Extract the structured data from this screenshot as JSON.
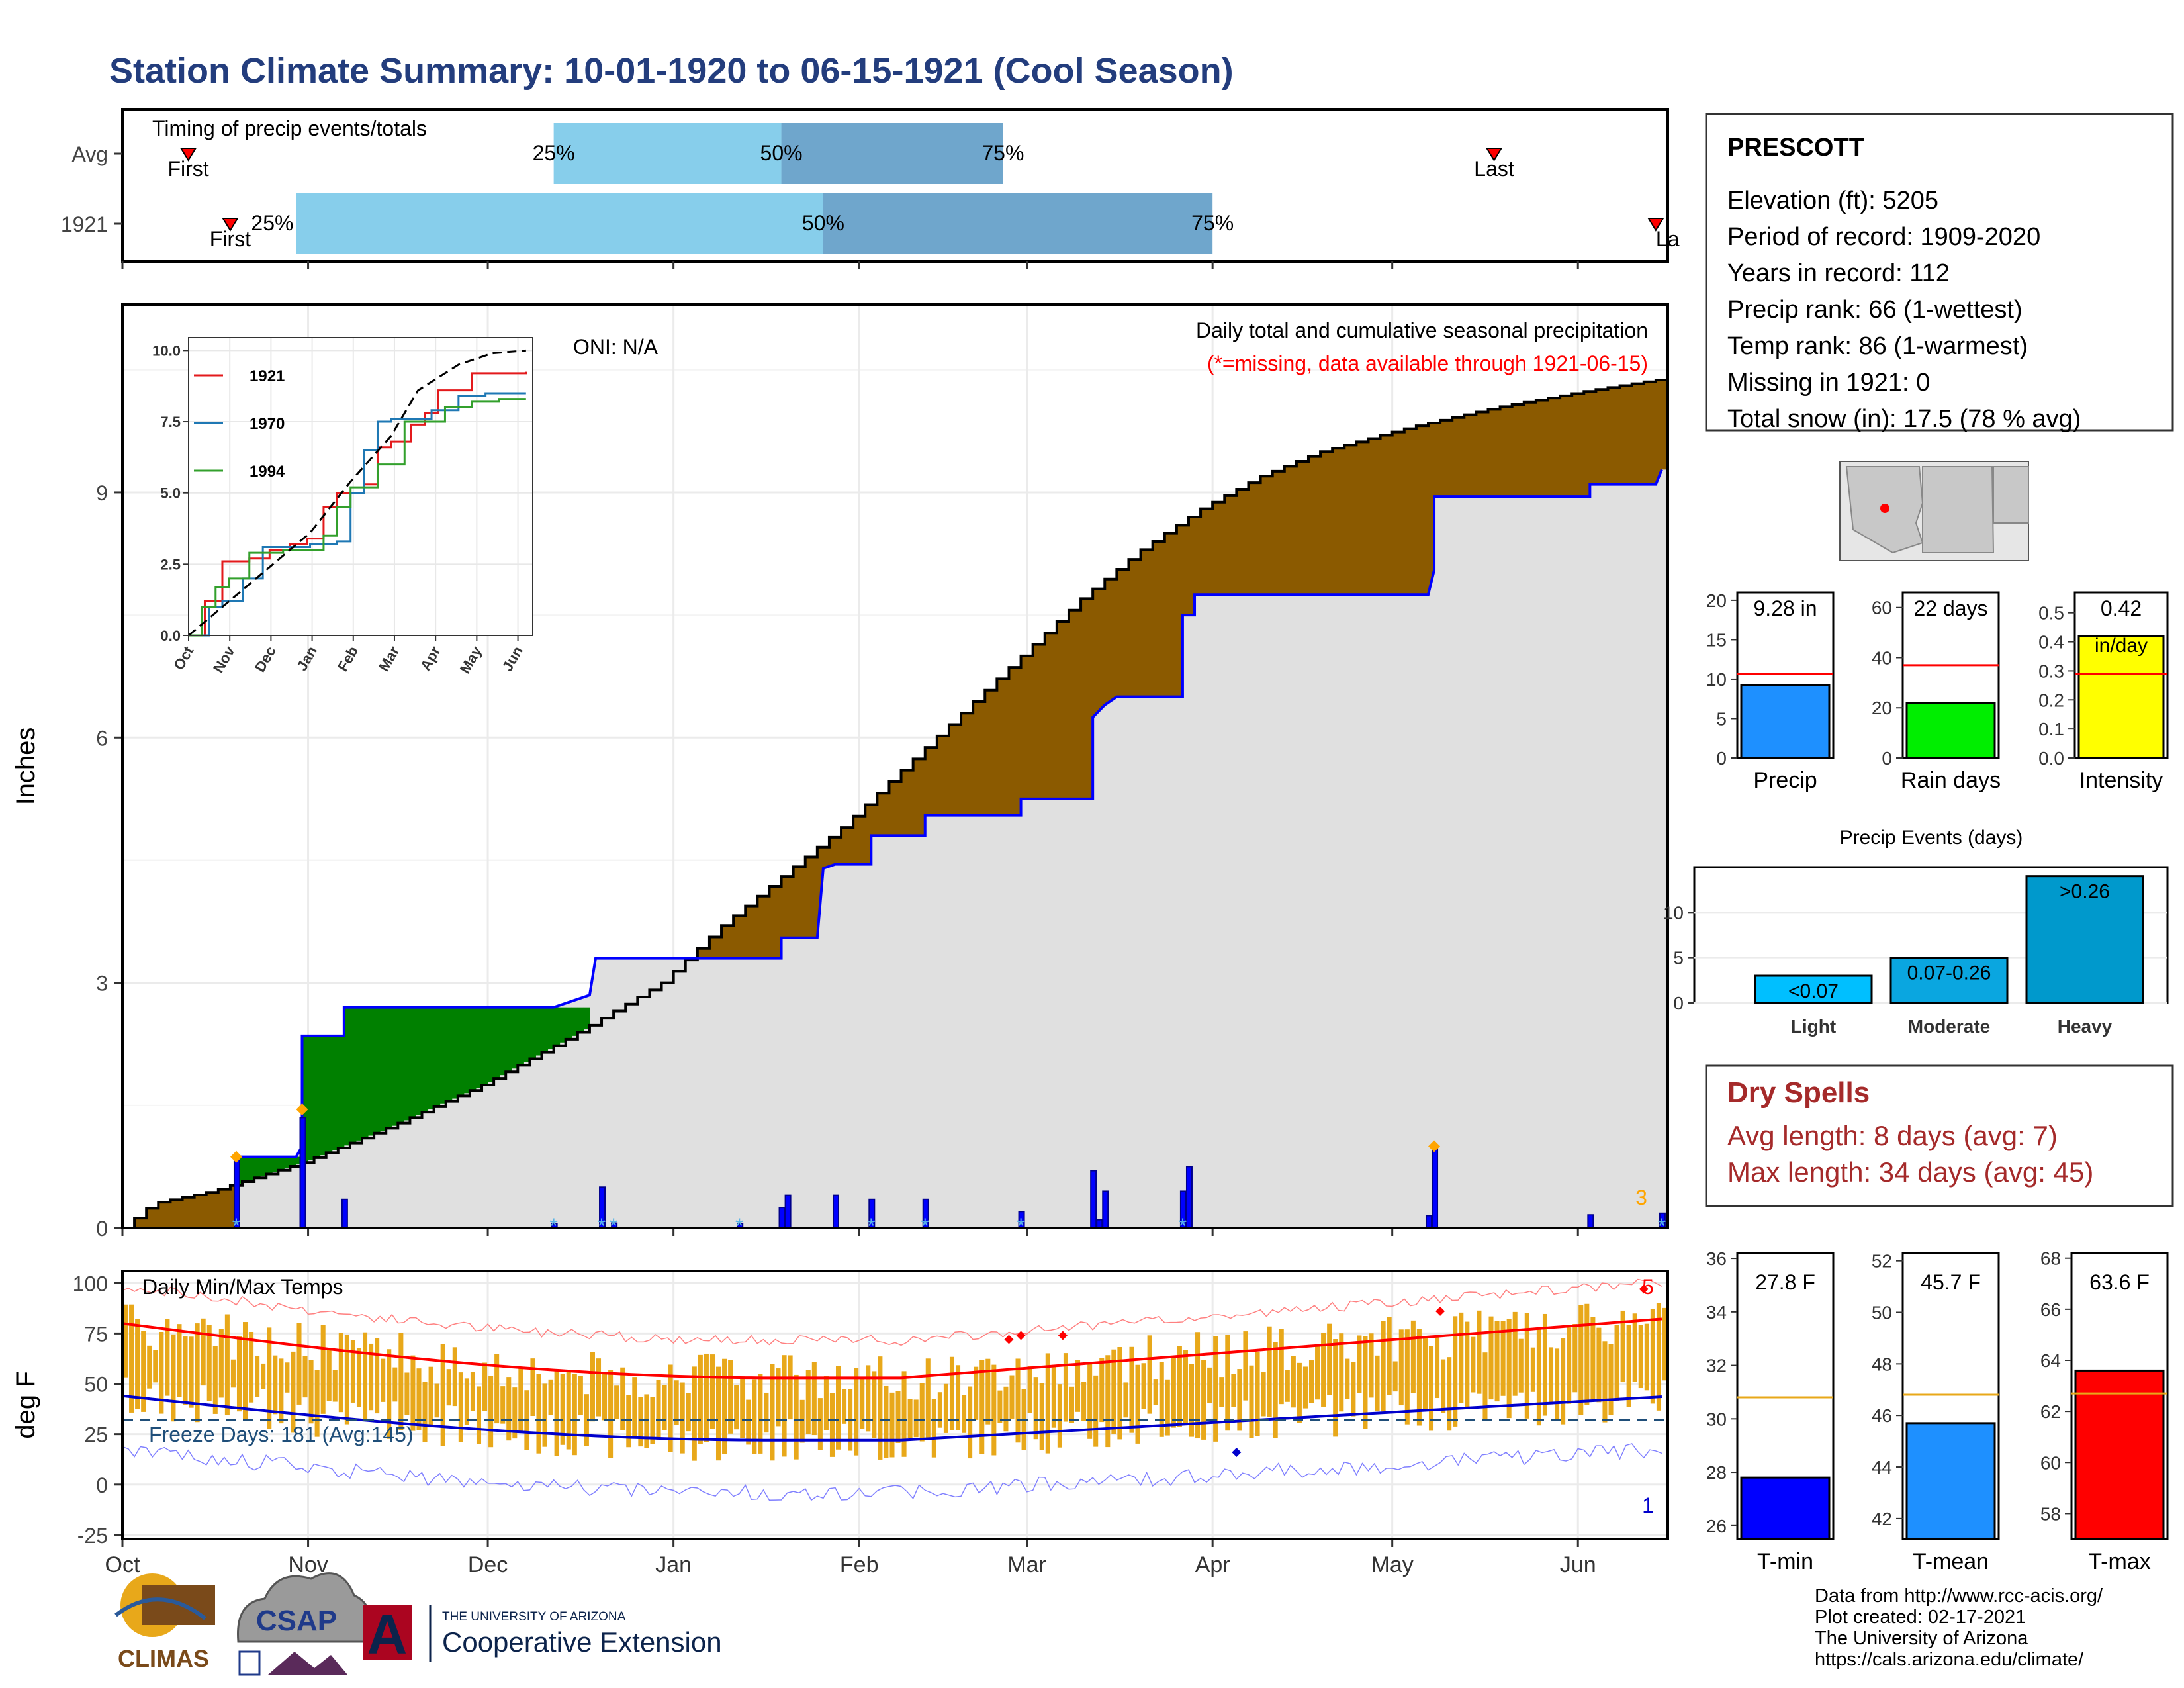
{
  "title": "Station Climate Summary: 10-01-1920 to 06-15-1921 (Cool Season)",
  "colors": {
    "title": "#233d7d",
    "light_blue": "#87ceeb",
    "mid_blue": "#6fa6cc",
    "brown": "#8b5a00",
    "green": "#008000",
    "gray_fill": "#e0e0e0",
    "blue_line": "#0000ff",
    "orange": "#e8a81a",
    "red": "#ff0000",
    "dry_spell": "#a52a2a"
  },
  "timing_panel": {
    "label": "Timing of precip events/totals",
    "rows": [
      {
        "name": "Avg",
        "first_label": "First",
        "last_label": "Last",
        "p25": "25%",
        "p50": "50%",
        "p75": "75%",
        "first_day": 11,
        "last_day": 229,
        "q25_day": 72,
        "q50_day": 110,
        "q75_day": 147
      },
      {
        "name": "1921",
        "first_label": "First",
        "last_label": "La",
        "p25": "25%",
        "p50": "50%",
        "p75": "75%",
        "first_day": 18,
        "last_day": 256,
        "q25_day": 29,
        "q50_day": 117,
        "q75_day": 182
      }
    ]
  },
  "main_panel": {
    "ylabel": "Inches",
    "yticks": [
      0,
      3,
      6,
      9
    ],
    "ymax": 11.3,
    "oni": "ONI: N/A",
    "header": "Daily total and cumulative seasonal precipitation",
    "missing_note": "(*=missing, data available through 1921-06-15)",
    "corner_count": "3",
    "days_total": 258,
    "avg_cumulative": [
      [
        0,
        0
      ],
      [
        5,
        0.3
      ],
      [
        15,
        0.45
      ],
      [
        30,
        0.8
      ],
      [
        45,
        1.25
      ],
      [
        60,
        1.75
      ],
      [
        75,
        2.35
      ],
      [
        90,
        3.0
      ],
      [
        100,
        3.7
      ],
      [
        110,
        4.3
      ],
      [
        120,
        4.9
      ],
      [
        130,
        5.6
      ],
      [
        140,
        6.3
      ],
      [
        150,
        7.0
      ],
      [
        160,
        7.7
      ],
      [
        170,
        8.3
      ],
      [
        180,
        8.8
      ],
      [
        190,
        9.2
      ],
      [
        200,
        9.5
      ],
      [
        215,
        9.8
      ],
      [
        230,
        10.05
      ],
      [
        245,
        10.25
      ],
      [
        258,
        10.4
      ]
    ],
    "season_cumulative": [
      [
        0,
        0
      ],
      [
        19,
        0
      ],
      [
        19,
        0.87
      ],
      [
        29,
        0.87
      ],
      [
        30,
        1.0
      ],
      [
        30,
        2.35
      ],
      [
        37,
        2.35
      ],
      [
        37,
        2.7
      ],
      [
        72,
        2.7
      ],
      [
        78,
        2.85
      ],
      [
        79,
        3.3
      ],
      [
        110,
        3.3
      ],
      [
        110,
        3.55
      ],
      [
        116,
        3.55
      ],
      [
        117,
        4.4
      ],
      [
        119,
        4.45
      ],
      [
        125,
        4.45
      ],
      [
        125,
        4.8
      ],
      [
        134,
        4.8
      ],
      [
        134,
        5.05
      ],
      [
        150,
        5.05
      ],
      [
        150,
        5.25
      ],
      [
        162,
        5.25
      ],
      [
        162,
        6.25
      ],
      [
        164,
        6.4
      ],
      [
        166,
        6.5
      ],
      [
        177,
        6.5
      ],
      [
        177,
        7.5
      ],
      [
        179,
        7.5
      ],
      [
        179,
        7.75
      ],
      [
        218,
        7.75
      ],
      [
        219,
        8.05
      ],
      [
        219,
        8.95
      ],
      [
        245,
        8.95
      ],
      [
        245,
        9.1
      ],
      [
        256,
        9.1
      ],
      [
        257,
        9.28
      ]
    ],
    "daily_bars": [
      [
        19,
        0.87
      ],
      [
        30,
        1.35
      ],
      [
        37,
        0.35
      ],
      [
        72,
        0.05
      ],
      [
        80,
        0.5
      ],
      [
        82,
        0.06
      ],
      [
        103,
        0.05
      ],
      [
        110,
        0.25
      ],
      [
        111,
        0.4
      ],
      [
        119,
        0.4
      ],
      [
        125,
        0.35
      ],
      [
        134,
        0.35
      ],
      [
        150,
        0.2
      ],
      [
        162,
        0.7
      ],
      [
        163,
        0.1
      ],
      [
        164,
        0.45
      ],
      [
        177,
        0.45
      ],
      [
        178,
        0.75
      ],
      [
        218,
        0.15
      ],
      [
        219,
        0.98
      ],
      [
        245,
        0.16
      ],
      [
        257,
        0.18
      ]
    ],
    "snow_days": [
      19,
      72,
      80,
      82,
      103,
      125,
      134,
      150,
      177,
      257
    ]
  },
  "inset": {
    "years": [
      "1921",
      "1970",
      "1994"
    ],
    "colors": [
      "#e31a1c",
      "#1f78b4",
      "#33a02c"
    ],
    "yticks": [
      "0.0",
      "2.5",
      "5.0",
      "7.5",
      "10.0"
    ],
    "ymax": 10.0,
    "months": [
      "Oct",
      "Nov",
      "Dec",
      "Jan",
      "Feb",
      "Mar",
      "Apr",
      "May",
      "Jun"
    ],
    "avg": [
      [
        0,
        0
      ],
      [
        30,
        1.2
      ],
      [
        60,
        2.4
      ],
      [
        90,
        3.6
      ],
      [
        120,
        5.4
      ],
      [
        150,
        7.0
      ],
      [
        170,
        8.6
      ],
      [
        200,
        9.5
      ],
      [
        225,
        9.9
      ],
      [
        250,
        10.0
      ]
    ],
    "series": [
      [
        [
          0,
          0
        ],
        [
          12,
          1.2
        ],
        [
          25,
          2.6
        ],
        [
          45,
          2.7
        ],
        [
          60,
          3.0
        ],
        [
          75,
          3.2
        ],
        [
          88,
          3.4
        ],
        [
          100,
          4.5
        ],
        [
          110,
          5.0
        ],
        [
          130,
          5.3
        ],
        [
          140,
          6.6
        ],
        [
          150,
          6.8
        ],
        [
          165,
          7.4
        ],
        [
          175,
          7.8
        ],
        [
          185,
          8.6
        ],
        [
          210,
          9.2
        ],
        [
          240,
          9.2
        ],
        [
          250,
          9.25
        ]
      ],
      [
        [
          0,
          0
        ],
        [
          15,
          1.0
        ],
        [
          25,
          1.2
        ],
        [
          40,
          2.0
        ],
        [
          55,
          3.1
        ],
        [
          75,
          3.1
        ],
        [
          90,
          3.2
        ],
        [
          110,
          3.3
        ],
        [
          120,
          5.0
        ],
        [
          130,
          6.5
        ],
        [
          140,
          7.5
        ],
        [
          150,
          7.6
        ],
        [
          160,
          7.6
        ],
        [
          180,
          7.9
        ],
        [
          200,
          8.4
        ],
        [
          220,
          8.5
        ],
        [
          250,
          8.5
        ]
      ],
      [
        [
          0,
          0
        ],
        [
          10,
          1.0
        ],
        [
          20,
          1.7
        ],
        [
          30,
          2.0
        ],
        [
          45,
          2.9
        ],
        [
          70,
          3.0
        ],
        [
          90,
          3.0
        ],
        [
          100,
          3.5
        ],
        [
          110,
          4.5
        ],
        [
          120,
          5.2
        ],
        [
          140,
          6.0
        ],
        [
          160,
          7.5
        ],
        [
          190,
          8.0
        ],
        [
          210,
          8.2
        ],
        [
          230,
          8.3
        ],
        [
          250,
          8.3
        ]
      ]
    ]
  },
  "temp_panel": {
    "ylabel": "deg F",
    "label": "Daily Min/Max Temps",
    "freeze": "Freeze Days: 181 (Avg:145)",
    "yticks": [
      -25,
      0,
      25,
      50,
      75,
      100
    ],
    "ymin": -27,
    "ymax": 106,
    "freeze_line": 32,
    "max_count": "5",
    "min_count": "1",
    "months": [
      "Oct",
      "Nov",
      "Dec",
      "Jan",
      "Feb",
      "Mar",
      "Apr",
      "May",
      "Jun"
    ],
    "month_days": [
      0,
      31,
      61,
      92,
      123,
      151,
      182,
      212,
      243
    ]
  },
  "station": {
    "name": "PRESCOTT",
    "lines": [
      "Elevation (ft): 5205",
      "Period of record: 1909-2020",
      "Years in record: 112",
      "Precip rank: 66 (1-wettest)",
      "Temp rank: 86 (1-warmest)",
      "Missing in 1921: 0",
      "Total snow (in): 17.5 (78 % avg)"
    ]
  },
  "mini_bars": [
    {
      "label": "Precip",
      "value": 9.28,
      "value_label": "9.28 in",
      "avg": 10.7,
      "ymax": 21,
      "yticks": [
        "0",
        "5",
        "10",
        "15",
        "20"
      ],
      "tick_vals": [
        0,
        5,
        10,
        15,
        20
      ],
      "color": "#1e90ff"
    },
    {
      "label": "Rain days",
      "value": 22,
      "value_label": "22 days",
      "avg": 37,
      "ymax": 66,
      "yticks": [
        "0",
        "20",
        "40",
        "60"
      ],
      "tick_vals": [
        0,
        20,
        40,
        60
      ],
      "color": "#00ee00"
    },
    {
      "label": "Intensity",
      "value": 0.42,
      "value_label": "0.42",
      "unit": "in/day",
      "avg": 0.29,
      "ymax": 0.57,
      "yticks": [
        "0.0",
        "0.1",
        "0.2",
        "0.3",
        "0.4",
        "0.5"
      ],
      "tick_vals": [
        0,
        0.1,
        0.2,
        0.3,
        0.4,
        0.5
      ],
      "color": "#ffff00"
    }
  ],
  "precip_events": {
    "title": "Precip Events (days)",
    "categories": [
      "Light",
      "Moderate",
      "Heavy"
    ],
    "bar_labels": [
      "<0.07",
      "0.07-0.26",
      ">0.26"
    ],
    "values": [
      3,
      5,
      14
    ],
    "ymax": 15,
    "yticks": [
      0,
      5,
      10
    ],
    "colors": [
      "#00bfff",
      "#0aa6e0",
      "#0099cc"
    ]
  },
  "dry_spells": {
    "title": "Dry Spells",
    "avg": "Avg length: 8 days (avg: 7)",
    "max": "Max length: 34 days (avg: 45)"
  },
  "temp_bars": [
    {
      "label": "T-min",
      "value": 27.8,
      "value_label": "27.8 F",
      "avg": 30.8,
      "ymin": 25.5,
      "ymax": 36.2,
      "yticks": [
        26,
        28,
        30,
        32,
        34,
        36
      ],
      "color": "#0000ff"
    },
    {
      "label": "T-mean",
      "value": 45.7,
      "value_label": "45.7 F",
      "avg": 46.8,
      "ymin": 41.2,
      "ymax": 52.3,
      "yticks": [
        42,
        44,
        46,
        48,
        50,
        52
      ],
      "color": "#1e90ff"
    },
    {
      "label": "T-max",
      "value": 63.6,
      "value_label": "63.6 F",
      "avg": 62.7,
      "ymin": 57.0,
      "ymax": 68.2,
      "yticks": [
        58,
        60,
        62,
        64,
        66,
        68
      ],
      "color": "#ff0000"
    }
  ],
  "footer": {
    "lines": [
      "Data from http://www.rcc-acis.org/",
      "Plot created: 02-17-2021",
      "The University of Arizona",
      "https://cals.arizona.edu/climate/"
    ],
    "logo_climas": "CLIMAS",
    "logo_csap": "CSAP",
    "logo_ua_small": "THE UNIVERSITY OF ARIZONA",
    "logo_ua_big": "Cooperative Extension",
    "logo_ua_letter": "A"
  }
}
